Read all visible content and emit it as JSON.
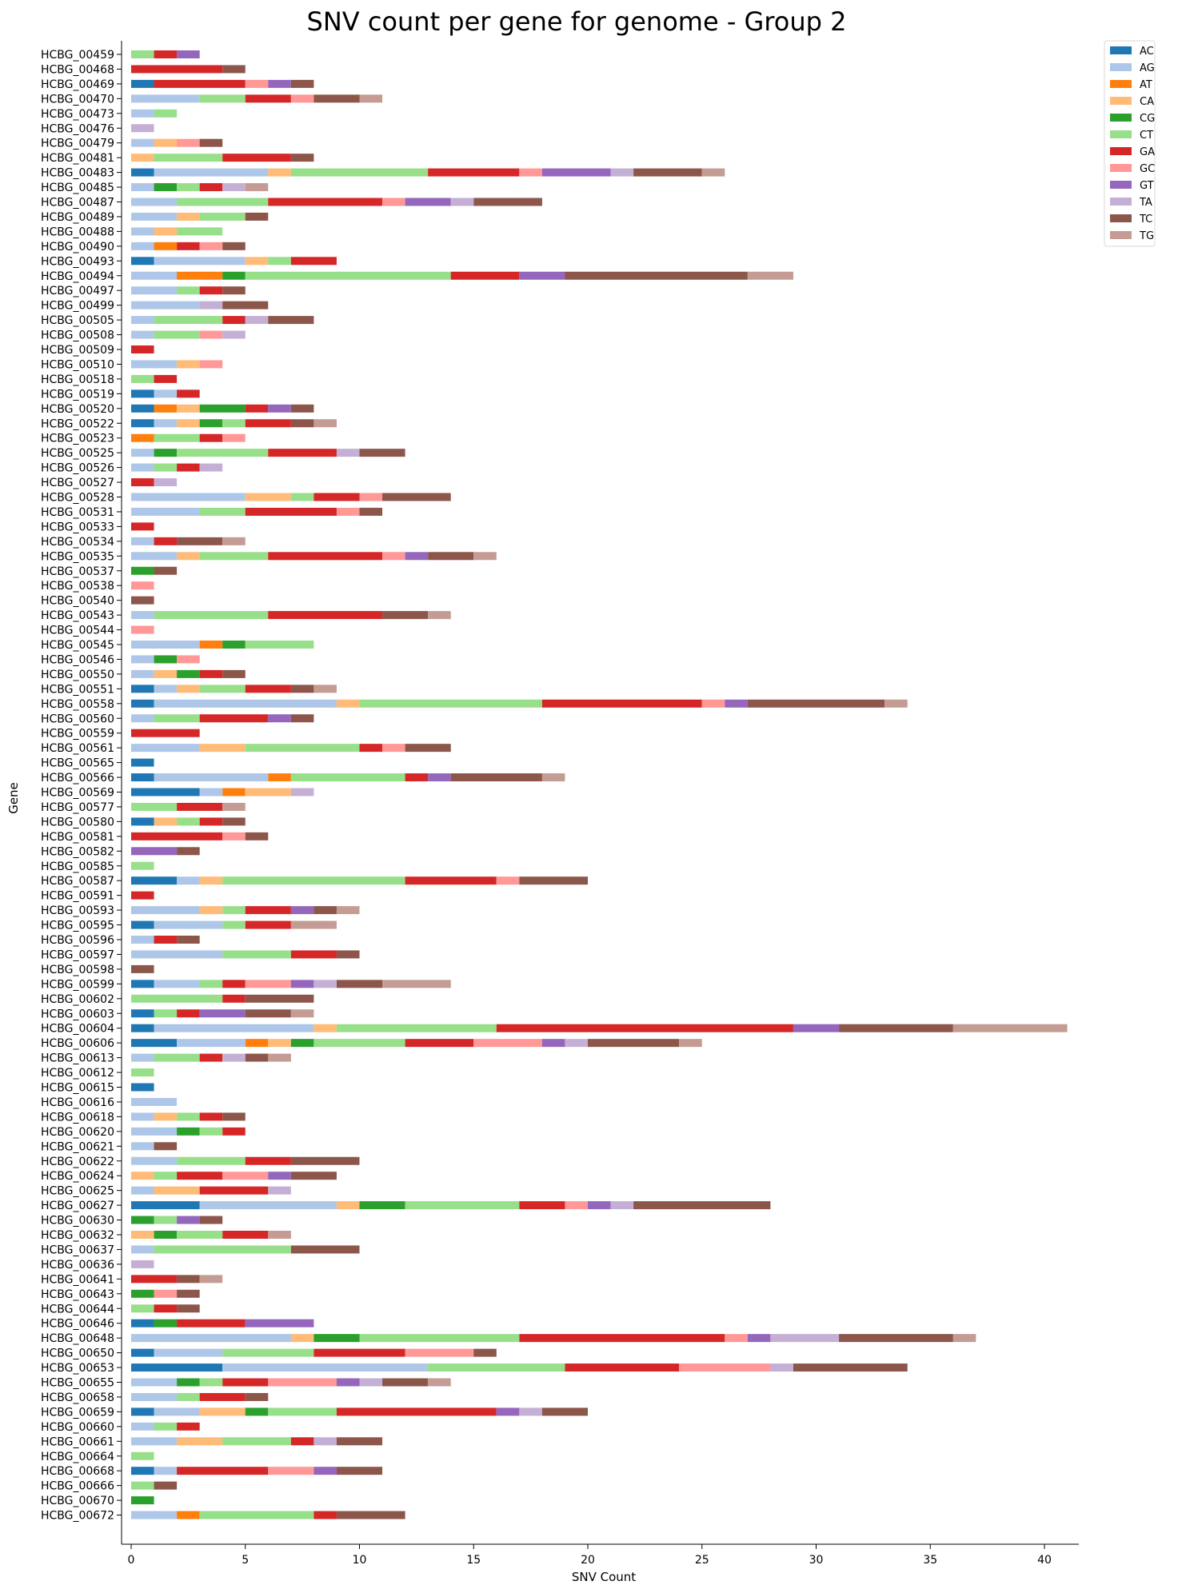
{
  "chart_data": {
    "type": "bar",
    "orientation": "horizontal",
    "stacked": true,
    "title": "SNV count per gene for genome - Group 2",
    "xlabel": "SNV Count",
    "ylabel": "Gene",
    "xlim": [
      0,
      41.5
    ],
    "xticks": [
      0,
      5,
      10,
      15,
      20,
      25,
      30,
      35,
      40
    ],
    "grid": false,
    "legend_position": "top-right, outside plot",
    "legend": [
      "AC",
      "AG",
      "AT",
      "CA",
      "CG",
      "CT",
      "GA",
      "GC",
      "GT",
      "TA",
      "TC",
      "TG"
    ],
    "colors": {
      "AC": "#1f77b4",
      "AG": "#aec7e8",
      "AT": "#ff7f0e",
      "CA": "#ffbb78",
      "CG": "#2ca02c",
      "CT": "#98df8a",
      "GA": "#d62728",
      "GC": "#ff9896",
      "GT": "#9467bd",
      "TA": "#c5b0d5",
      "TC": "#8c564b",
      "TG": "#c49c94"
    },
    "genes": [
      {
        "name": "HCBG_00459",
        "segments": {
          "CT": 1,
          "GA": 1,
          "GT": 1
        }
      },
      {
        "name": "HCBG_00468",
        "segments": {
          "GA": 4,
          "TC": 1
        }
      },
      {
        "name": "HCBG_00469",
        "segments": {
          "AC": 1,
          "GA": 4,
          "GC": 1,
          "GT": 1,
          "TC": 1
        }
      },
      {
        "name": "HCBG_00470",
        "segments": {
          "AG": 3,
          "CT": 2,
          "GA": 2,
          "GC": 1,
          "TC": 2,
          "TG": 1
        }
      },
      {
        "name": "HCBG_00473",
        "segments": {
          "AG": 1,
          "CT": 1
        }
      },
      {
        "name": "HCBG_00476",
        "segments": {
          "TA": 1
        }
      },
      {
        "name": "HCBG_00479",
        "segments": {
          "AG": 1,
          "CA": 1,
          "GC": 1,
          "TC": 1
        }
      },
      {
        "name": "HCBG_00481",
        "segments": {
          "CA": 1,
          "CT": 3,
          "GA": 3,
          "TC": 1
        }
      },
      {
        "name": "HCBG_00483",
        "segments": {
          "AC": 1,
          "AG": 5,
          "CA": 1,
          "CT": 6,
          "GA": 4,
          "GC": 1,
          "GT": 3,
          "TA": 1,
          "TC": 3,
          "TG": 1
        }
      },
      {
        "name": "HCBG_00485",
        "segments": {
          "AG": 1,
          "CG": 1,
          "CT": 1,
          "GA": 1,
          "TA": 1,
          "TG": 1
        }
      },
      {
        "name": "HCBG_00487",
        "segments": {
          "AG": 2,
          "CT": 4,
          "GA": 5,
          "GC": 1,
          "GT": 2,
          "TA": 1,
          "TC": 3
        }
      },
      {
        "name": "HCBG_00489",
        "segments": {
          "AG": 2,
          "CA": 1,
          "CT": 2,
          "TC": 1
        }
      },
      {
        "name": "HCBG_00488",
        "segments": {
          "AG": 1,
          "CA": 1,
          "CT": 2
        }
      },
      {
        "name": "HCBG_00490",
        "segments": {
          "AG": 1,
          "AT": 1,
          "GA": 1,
          "GC": 1,
          "TC": 1
        }
      },
      {
        "name": "HCBG_00493",
        "segments": {
          "AC": 1,
          "AG": 4,
          "CA": 1,
          "CT": 1,
          "GA": 2
        }
      },
      {
        "name": "HCBG_00494",
        "segments": {
          "AG": 2,
          "AT": 2,
          "CG": 1,
          "CT": 9,
          "GA": 3,
          "GT": 2,
          "TC": 8,
          "TG": 2
        }
      },
      {
        "name": "HCBG_00497",
        "segments": {
          "AG": 2,
          "CT": 1,
          "GA": 1,
          "TC": 1
        }
      },
      {
        "name": "HCBG_00499",
        "segments": {
          "AG": 3,
          "TA": 1,
          "TC": 2
        }
      },
      {
        "name": "HCBG_00505",
        "segments": {
          "AG": 1,
          "CT": 3,
          "GA": 1,
          "TA": 1,
          "TC": 2
        }
      },
      {
        "name": "HCBG_00508",
        "segments": {
          "AG": 1,
          "CT": 2,
          "GC": 1,
          "TA": 1
        }
      },
      {
        "name": "HCBG_00509",
        "segments": {
          "GA": 1
        }
      },
      {
        "name": "HCBG_00510",
        "segments": {
          "AG": 2,
          "CA": 1,
          "GC": 1
        }
      },
      {
        "name": "HCBG_00518",
        "segments": {
          "CT": 1,
          "GA": 1
        }
      },
      {
        "name": "HCBG_00519",
        "segments": {
          "AC": 1,
          "AG": 1,
          "GA": 1
        }
      },
      {
        "name": "HCBG_00520",
        "segments": {
          "AC": 1,
          "AT": 1,
          "CA": 1,
          "CG": 2,
          "GA": 1,
          "GT": 1,
          "TC": 1
        }
      },
      {
        "name": "HCBG_00522",
        "segments": {
          "AC": 1,
          "AG": 1,
          "CA": 1,
          "CG": 1,
          "CT": 1,
          "GA": 2,
          "TC": 1,
          "TG": 1
        }
      },
      {
        "name": "HCBG_00523",
        "segments": {
          "AT": 1,
          "CT": 2,
          "GA": 1,
          "GC": 1
        }
      },
      {
        "name": "HCBG_00525",
        "segments": {
          "AG": 1,
          "CG": 1,
          "CT": 4,
          "GA": 3,
          "TA": 1,
          "TC": 2
        }
      },
      {
        "name": "HCBG_00526",
        "segments": {
          "AG": 1,
          "CT": 1,
          "GA": 1,
          "TA": 1
        }
      },
      {
        "name": "HCBG_00527",
        "segments": {
          "GA": 1,
          "TA": 1
        }
      },
      {
        "name": "HCBG_00528",
        "segments": {
          "AG": 5,
          "CA": 2,
          "CT": 1,
          "GA": 2,
          "GC": 1,
          "TC": 3
        }
      },
      {
        "name": "HCBG_00531",
        "segments": {
          "AG": 3,
          "CT": 2,
          "GA": 4,
          "GC": 1,
          "TC": 1
        }
      },
      {
        "name": "HCBG_00533",
        "segments": {
          "GA": 1
        }
      },
      {
        "name": "HCBG_00534",
        "segments": {
          "AG": 1,
          "GA": 1,
          "TC": 2,
          "TG": 1
        }
      },
      {
        "name": "HCBG_00535",
        "segments": {
          "AG": 2,
          "CA": 1,
          "CT": 3,
          "GA": 5,
          "GC": 1,
          "GT": 1,
          "TC": 2,
          "TG": 1
        }
      },
      {
        "name": "HCBG_00537",
        "segments": {
          "CG": 1,
          "TC": 1
        }
      },
      {
        "name": "HCBG_00538",
        "segments": {
          "GC": 1
        }
      },
      {
        "name": "HCBG_00540",
        "segments": {
          "TC": 1
        }
      },
      {
        "name": "HCBG_00543",
        "segments": {
          "AG": 1,
          "CT": 5,
          "GA": 5,
          "TC": 2,
          "TG": 1
        }
      },
      {
        "name": "HCBG_00544",
        "segments": {
          "GC": 1
        }
      },
      {
        "name": "HCBG_00545",
        "segments": {
          "AG": 3,
          "AT": 1,
          "CG": 1,
          "CT": 3
        }
      },
      {
        "name": "HCBG_00546",
        "segments": {
          "AG": 1,
          "CG": 1,
          "GC": 1
        }
      },
      {
        "name": "HCBG_00550",
        "segments": {
          "AG": 1,
          "CA": 1,
          "CG": 1,
          "GA": 1,
          "TC": 1
        }
      },
      {
        "name": "HCBG_00551",
        "segments": {
          "AC": 1,
          "AG": 1,
          "CA": 1,
          "CT": 2,
          "GA": 2,
          "TC": 1,
          "TG": 1
        }
      },
      {
        "name": "HCBG_00558",
        "segments": {
          "AC": 1,
          "AG": 8,
          "CA": 1,
          "CT": 8,
          "GA": 7,
          "GC": 1,
          "GT": 1,
          "TC": 6,
          "TG": 1
        }
      },
      {
        "name": "HCBG_00560",
        "segments": {
          "AG": 1,
          "CT": 2,
          "GA": 3,
          "GT": 1,
          "TC": 1
        }
      },
      {
        "name": "HCBG_00559",
        "segments": {
          "GA": 3
        }
      },
      {
        "name": "HCBG_00561",
        "segments": {
          "AG": 3,
          "CA": 2,
          "CT": 5,
          "GA": 1,
          "GC": 1,
          "TC": 2
        }
      },
      {
        "name": "HCBG_00565",
        "segments": {
          "AC": 1
        }
      },
      {
        "name": "HCBG_00566",
        "segments": {
          "AC": 1,
          "AG": 5,
          "AT": 1,
          "CT": 5,
          "GA": 1,
          "GT": 1,
          "TC": 4,
          "TG": 1
        }
      },
      {
        "name": "HCBG_00569",
        "segments": {
          "AC": 3,
          "AG": 1,
          "AT": 1,
          "CA": 2,
          "TA": 1
        }
      },
      {
        "name": "HCBG_00577",
        "segments": {
          "CT": 2,
          "GA": 2,
          "TG": 1
        }
      },
      {
        "name": "HCBG_00580",
        "segments": {
          "AC": 1,
          "CA": 1,
          "CT": 1,
          "GA": 1,
          "TC": 1
        }
      },
      {
        "name": "HCBG_00581",
        "segments": {
          "GA": 4,
          "GC": 1,
          "TC": 1
        }
      },
      {
        "name": "HCBG_00582",
        "segments": {
          "GT": 2,
          "TC": 1
        }
      },
      {
        "name": "HCBG_00585",
        "segments": {
          "CT": 1
        }
      },
      {
        "name": "HCBG_00587",
        "segments": {
          "AC": 2,
          "AG": 1,
          "CA": 1,
          "CT": 8,
          "GA": 4,
          "GC": 1,
          "TC": 3
        }
      },
      {
        "name": "HCBG_00591",
        "segments": {
          "GA": 1
        }
      },
      {
        "name": "HCBG_00593",
        "segments": {
          "AG": 3,
          "CA": 1,
          "CT": 1,
          "GA": 2,
          "GT": 1,
          "TC": 1,
          "TG": 1
        }
      },
      {
        "name": "HCBG_00595",
        "segments": {
          "AC": 1,
          "AG": 3,
          "CT": 1,
          "GA": 2,
          "TG": 2
        }
      },
      {
        "name": "HCBG_00596",
        "segments": {
          "AG": 1,
          "GA": 1,
          "TC": 1
        }
      },
      {
        "name": "HCBG_00597",
        "segments": {
          "AG": 4,
          "CT": 3,
          "GA": 2,
          "TC": 1
        }
      },
      {
        "name": "HCBG_00598",
        "segments": {
          "TC": 1
        }
      },
      {
        "name": "HCBG_00599",
        "segments": {
          "AC": 1,
          "AG": 2,
          "CT": 1,
          "GA": 1,
          "GC": 2,
          "GT": 1,
          "TA": 1,
          "TC": 2,
          "TG": 3
        }
      },
      {
        "name": "HCBG_00602",
        "segments": {
          "CT": 4,
          "GA": 1,
          "TC": 3
        }
      },
      {
        "name": "HCBG_00603",
        "segments": {
          "AC": 1,
          "CT": 1,
          "GA": 1,
          "GT": 2,
          "TC": 2,
          "TG": 1
        }
      },
      {
        "name": "HCBG_00604",
        "segments": {
          "AC": 1,
          "AG": 7,
          "CA": 1,
          "CT": 7,
          "GA": 13,
          "GT": 2,
          "TC": 5,
          "TG": 5
        }
      },
      {
        "name": "HCBG_00606",
        "segments": {
          "AC": 2,
          "AG": 3,
          "AT": 1,
          "CA": 1,
          "CG": 1,
          "CT": 4,
          "GA": 3,
          "GC": 3,
          "GT": 1,
          "TA": 1,
          "TC": 4,
          "TG": 1
        }
      },
      {
        "name": "HCBG_00613",
        "segments": {
          "AG": 1,
          "CT": 2,
          "GA": 1,
          "TA": 1,
          "TC": 1,
          "TG": 1
        }
      },
      {
        "name": "HCBG_00612",
        "segments": {
          "CT": 1
        }
      },
      {
        "name": "HCBG_00615",
        "segments": {
          "AC": 1
        }
      },
      {
        "name": "HCBG_00616",
        "segments": {
          "AG": 2
        }
      },
      {
        "name": "HCBG_00618",
        "segments": {
          "AG": 1,
          "CA": 1,
          "CT": 1,
          "GA": 1,
          "TC": 1
        }
      },
      {
        "name": "HCBG_00620",
        "segments": {
          "AG": 2,
          "CG": 1,
          "CT": 1,
          "GA": 1
        }
      },
      {
        "name": "HCBG_00621",
        "segments": {
          "AG": 1,
          "TC": 1
        }
      },
      {
        "name": "HCBG_00622",
        "segments": {
          "AG": 2,
          "CT": 3,
          "GA": 2,
          "TC": 3
        }
      },
      {
        "name": "HCBG_00624",
        "segments": {
          "CA": 1,
          "CT": 1,
          "GA": 2,
          "GC": 2,
          "GT": 1,
          "TC": 2
        }
      },
      {
        "name": "HCBG_00625",
        "segments": {
          "AG": 1,
          "CA": 2,
          "GA": 3,
          "TA": 1
        }
      },
      {
        "name": "HCBG_00627",
        "segments": {
          "AC": 3,
          "AG": 6,
          "CA": 1,
          "CG": 2,
          "CT": 5,
          "GA": 2,
          "GC": 1,
          "GT": 1,
          "TA": 1,
          "TC": 6
        }
      },
      {
        "name": "HCBG_00630",
        "segments": {
          "CG": 1,
          "CT": 1,
          "GT": 1,
          "TC": 1
        }
      },
      {
        "name": "HCBG_00632",
        "segments": {
          "CA": 1,
          "CG": 1,
          "CT": 2,
          "GA": 2,
          "TG": 1
        }
      },
      {
        "name": "HCBG_00637",
        "segments": {
          "AG": 1,
          "CT": 6,
          "TC": 3
        }
      },
      {
        "name": "HCBG_00636",
        "segments": {
          "TA": 1
        }
      },
      {
        "name": "HCBG_00641",
        "segments": {
          "GA": 2,
          "TC": 1,
          "TG": 1
        }
      },
      {
        "name": "HCBG_00643",
        "segments": {
          "CG": 1,
          "GC": 1,
          "TC": 1
        }
      },
      {
        "name": "HCBG_00644",
        "segments": {
          "CT": 1,
          "GA": 1,
          "TC": 1
        }
      },
      {
        "name": "HCBG_00646",
        "segments": {
          "AC": 1,
          "CG": 1,
          "GA": 3,
          "GT": 3
        }
      },
      {
        "name": "HCBG_00648",
        "segments": {
          "AG": 7,
          "CA": 1,
          "CG": 2,
          "CT": 7,
          "GA": 9,
          "GC": 1,
          "GT": 1,
          "TA": 3,
          "TC": 5,
          "TG": 1
        }
      },
      {
        "name": "HCBG_00650",
        "segments": {
          "AC": 1,
          "AG": 3,
          "CT": 4,
          "GA": 4,
          "GC": 3,
          "TC": 1
        }
      },
      {
        "name": "HCBG_00653",
        "segments": {
          "AC": 4,
          "AG": 9,
          "CT": 6,
          "GA": 5,
          "GC": 4,
          "TA": 1,
          "TC": 5
        }
      },
      {
        "name": "HCBG_00655",
        "segments": {
          "AG": 2,
          "CG": 1,
          "CT": 1,
          "GA": 2,
          "GC": 3,
          "GT": 1,
          "TA": 1,
          "TC": 2,
          "TG": 1
        }
      },
      {
        "name": "HCBG_00658",
        "segments": {
          "AG": 2,
          "CT": 1,
          "GA": 2,
          "TC": 1
        }
      },
      {
        "name": "HCBG_00659",
        "segments": {
          "AC": 1,
          "AG": 2,
          "CA": 2,
          "CG": 1,
          "CT": 3,
          "GA": 7,
          "GT": 1,
          "TA": 1,
          "TC": 2
        }
      },
      {
        "name": "HCBG_00660",
        "segments": {
          "AG": 1,
          "CT": 1,
          "GA": 1
        }
      },
      {
        "name": "HCBG_00661",
        "segments": {
          "AG": 2,
          "CA": 2,
          "CT": 3,
          "GA": 1,
          "TA": 1,
          "TC": 2
        }
      },
      {
        "name": "HCBG_00664",
        "segments": {
          "CT": 1
        }
      },
      {
        "name": "HCBG_00668",
        "segments": {
          "AC": 1,
          "AG": 1,
          "GA": 4,
          "GC": 2,
          "GT": 1,
          "TC": 2
        }
      },
      {
        "name": "HCBG_00666",
        "segments": {
          "CT": 1,
          "TC": 1
        }
      },
      {
        "name": "HCBG_00670",
        "segments": {
          "CG": 1
        }
      },
      {
        "name": "HCBG_00672",
        "segments": {
          "AG": 2,
          "AT": 1,
          "CT": 5,
          "GA": 1,
          "TC": 3
        }
      }
    ]
  }
}
